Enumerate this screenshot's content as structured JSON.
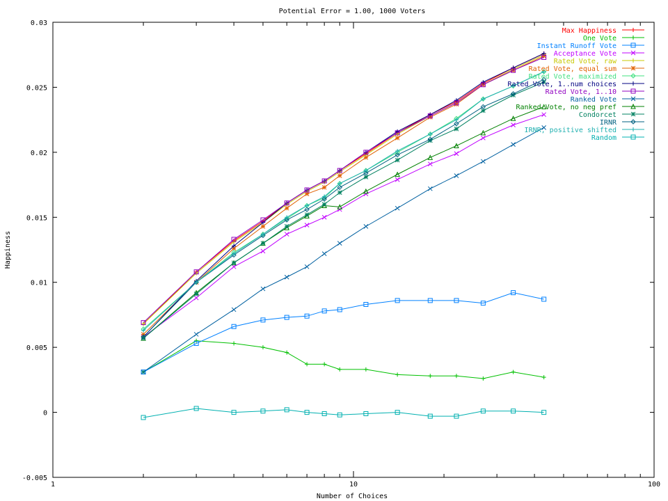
{
  "chart_data": {
    "type": "line",
    "title": "Potential Error = 1.00, 1000 Voters",
    "xlabel": "Number of Choices",
    "ylabel": "Happiness",
    "x_scale": "log",
    "xlim": [
      1,
      100
    ],
    "ylim": [
      -0.005,
      0.03
    ],
    "x_ticks": [
      1,
      10,
      100
    ],
    "x_tick_labels": [
      "1",
      "10",
      "100"
    ],
    "y_ticks": [
      -0.005,
      0,
      0.005,
      0.01,
      0.015,
      0.02,
      0.025,
      0.03
    ],
    "y_tick_labels": [
      "-0.005",
      "0",
      "0.005",
      "0.01",
      "0.015",
      "0.02",
      "0.025",
      "0.03"
    ],
    "grid": false,
    "legend_position": "top-right",
    "x": [
      2,
      3,
      4,
      5,
      6,
      7,
      8,
      9,
      11,
      14,
      18,
      22,
      27,
      34,
      43
    ],
    "series": [
      {
        "name": "Max Happiness",
        "color": "#ff0000",
        "marker": "plus",
        "values": [
          0.0068,
          0.0108,
          0.0132,
          0.0147,
          0.0161,
          0.0171,
          0.0178,
          0.0186,
          0.0199,
          0.0215,
          0.0229,
          0.0239,
          0.0253,
          0.0265,
          0.0276
        ]
      },
      {
        "name": "One Vote",
        "color": "#00c000",
        "marker": "cross",
        "values": [
          0.0031,
          0.0055,
          0.0053,
          0.005,
          0.0046,
          0.0037,
          0.0037,
          0.0033,
          0.0033,
          0.0029,
          0.0028,
          0.0028,
          0.0026,
          0.0031,
          0.0027
        ]
      },
      {
        "name": "Instant Runoff Vote",
        "color": "#0080ff",
        "marker": "box",
        "values": [
          0.0031,
          0.0053,
          0.0066,
          0.0071,
          0.0073,
          0.0074,
          0.0078,
          0.0079,
          0.0083,
          0.0086,
          0.0086,
          0.0086,
          0.0084,
          0.0092,
          0.0087
        ]
      },
      {
        "name": "Acceptance Vote",
        "color": "#c000ff",
        "marker": "x",
        "values": [
          0.0058,
          0.0088,
          0.0112,
          0.0124,
          0.0137,
          0.0144,
          0.015,
          0.0156,
          0.0168,
          0.0179,
          0.0191,
          0.0199,
          0.0211,
          0.0221,
          0.0229
        ]
      },
      {
        "name": "Rated Vote, raw",
        "color": "#c8c800",
        "marker": "plus",
        "values": [
          0.0068,
          0.0107,
          0.0131,
          0.0146,
          0.016,
          0.017,
          0.0177,
          0.0185,
          0.0198,
          0.0214,
          0.0228,
          0.0238,
          0.0252,
          0.0264,
          0.0275
        ]
      },
      {
        "name": "Rated Vote, equal sum",
        "color": "#e06000",
        "marker": "star",
        "values": [
          0.006,
          0.01,
          0.0126,
          0.0143,
          0.0157,
          0.0168,
          0.0173,
          0.0182,
          0.0196,
          0.0211,
          0.0227,
          0.0237,
          0.0252,
          0.0263,
          0.0274
        ]
      },
      {
        "name": "Rated Vote, maximized",
        "color": "#40e080",
        "marker": "diamond",
        "values": [
          0.0064,
          0.01,
          0.0123,
          0.0137,
          0.0149,
          0.0159,
          0.0165,
          0.0176,
          0.0186,
          0.02,
          0.0214,
          0.0226,
          0.0241,
          0.0251,
          0.0262
        ]
      },
      {
        "name": "Rated Vote, 1..num choices",
        "color": "#000080",
        "marker": "plus",
        "values": [
          0.0058,
          0.0101,
          0.0128,
          0.0146,
          0.0161,
          0.0171,
          0.0178,
          0.0186,
          0.02,
          0.0216,
          0.0229,
          0.024,
          0.0254,
          0.0265,
          0.0276
        ]
      },
      {
        "name": "Rated Vote, 1..10",
        "color": "#9000c0",
        "marker": "box",
        "values": [
          0.0069,
          0.0108,
          0.0133,
          0.0148,
          0.0161,
          0.0171,
          0.0178,
          0.0186,
          0.02,
          0.0215,
          0.0228,
          0.0238,
          0.0252,
          0.0263,
          0.0273
        ]
      },
      {
        "name": "Ranked Vote",
        "color": "#0060a0",
        "marker": "x",
        "values": [
          0.0031,
          0.006,
          0.0079,
          0.0095,
          0.0104,
          0.0112,
          0.0122,
          0.013,
          0.0143,
          0.0157,
          0.0172,
          0.0182,
          0.0193,
          0.0206,
          0.0219
        ]
      },
      {
        "name": "Ranked Vote, no neg pref",
        "color": "#008000",
        "marker": "triangle",
        "values": [
          0.0057,
          0.0092,
          0.0115,
          0.013,
          0.0142,
          0.0151,
          0.0159,
          0.0158,
          0.017,
          0.0183,
          0.0196,
          0.0205,
          0.0215,
          0.0226,
          0.0235
        ]
      },
      {
        "name": "Condorcet",
        "color": "#008060",
        "marker": "star",
        "values": [
          0.0057,
          0.0091,
          0.0115,
          0.013,
          0.0143,
          0.0152,
          0.016,
          0.0169,
          0.0181,
          0.0194,
          0.0209,
          0.0218,
          0.0232,
          0.0244,
          0.0254
        ]
      },
      {
        "name": "IRNR",
        "color": "#006080",
        "marker": "diamond",
        "values": [
          0.0058,
          0.01,
          0.0121,
          0.0136,
          0.0148,
          0.0156,
          0.0164,
          0.0173,
          0.0184,
          0.0198,
          0.021,
          0.0222,
          0.0235,
          0.0245,
          0.0256
        ]
      },
      {
        "name": "IRNR, positive shifted",
        "color": "#20b0b0",
        "marker": "plus",
        "values": [
          0.0063,
          0.01,
          0.0122,
          0.0137,
          0.015,
          0.0159,
          0.0166,
          0.0176,
          0.0186,
          0.0201,
          0.0214,
          0.0225,
          0.0241,
          0.0251,
          0.0262
        ]
      },
      {
        "name": "Random",
        "color": "#00b0b0",
        "marker": "box",
        "values": [
          -0.0004,
          0.0003,
          0.0,
          0.0001,
          0.0002,
          0.0,
          -0.0001,
          -0.0002,
          -0.0001,
          0.0,
          -0.0003,
          -0.0003,
          0.0001,
          0.0001,
          0.0
        ]
      }
    ]
  }
}
